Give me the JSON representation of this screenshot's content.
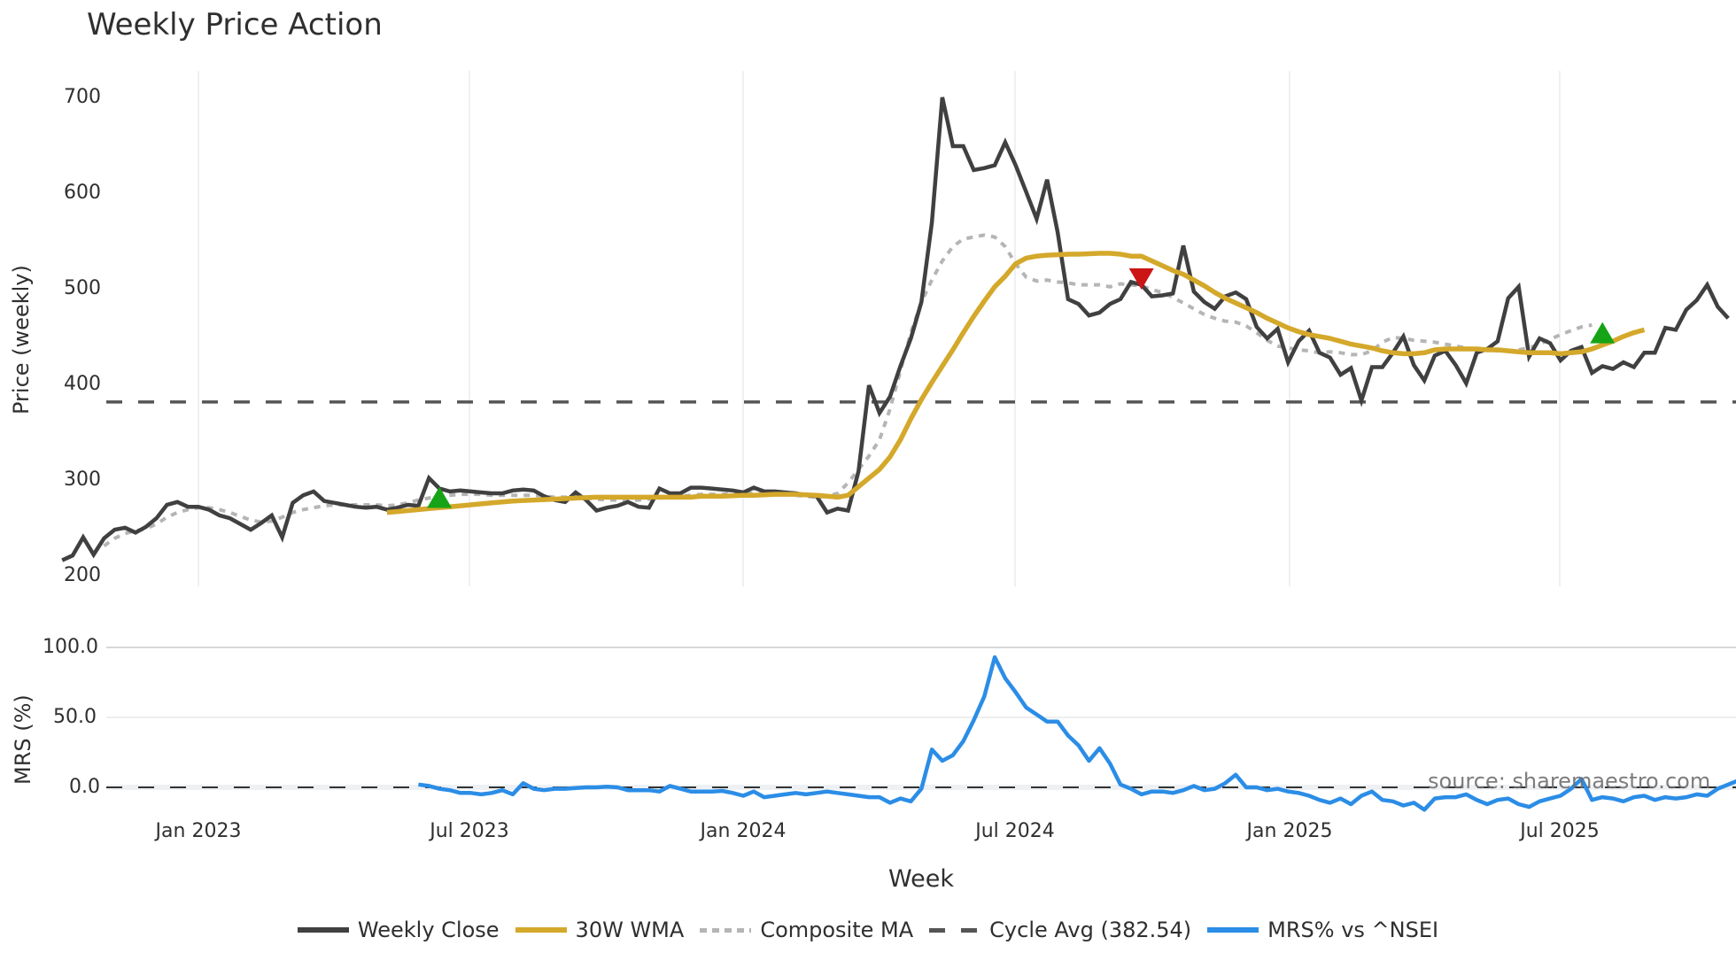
{
  "title": "Weekly Price Action",
  "source_note": "source: sharemaestro.com",
  "legend": [
    {
      "key": "close",
      "label": "Weekly Close",
      "color": "#404040",
      "style": "solid"
    },
    {
      "key": "wma",
      "label": "30W WMA",
      "color": "#d4a82a",
      "style": "solid"
    },
    {
      "key": "composite",
      "label": "Composite MA",
      "color": "#b5b5b5",
      "style": "dotted"
    },
    {
      "key": "cycle",
      "label": "Cycle Avg (382.54)",
      "color": "#555555",
      "style": "dashed"
    },
    {
      "key": "mrs",
      "label": "MRS% vs ^NSEI",
      "color": "#2b8de6",
      "style": "solid"
    }
  ],
  "chart_data": [
    {
      "type": "line",
      "title": "Weekly Price Action",
      "xlabel": "Week",
      "ylabel": "Price (weekly)",
      "ylim": [
        200,
        720
      ],
      "yticks": [
        200,
        300,
        400,
        500,
        600,
        700
      ],
      "xticks": [
        "Jan 2023",
        "Jul 2023",
        "Jan 2024",
        "Jul 2024",
        "Jan 2025",
        "Jul 2025"
      ],
      "grid": "vertical",
      "x_start": "2022-10-03",
      "x_step": "1 week",
      "cycle_avg": 382.54,
      "series": [
        {
          "name": "Weekly Close",
          "values": [
            217,
            222,
            241,
            223,
            240,
            249,
            251,
            246,
            252,
            261,
            275,
            278,
            273,
            273,
            270,
            264,
            261,
            255,
            249,
            256,
            264,
            241,
            277,
            285,
            289,
            279,
            277,
            275,
            273,
            272,
            273,
            270,
            272,
            275,
            274,
            303,
            292,
            289,
            290,
            289,
            288,
            287,
            287,
            290,
            291,
            290,
            284,
            280,
            278,
            288,
            280,
            269,
            272,
            274,
            278,
            273,
            272,
            292,
            287,
            287,
            293,
            293,
            292,
            291,
            290,
            288,
            293,
            289,
            289,
            288,
            287,
            285,
            284,
            267,
            271,
            269,
            310,
            400,
            371,
            388,
            420,
            449,
            487,
            570,
            701,
            650,
            650,
            625,
            627,
            630,
            654,
            630,
            602,
            574,
            615,
            560,
            490,
            485,
            473,
            476,
            485,
            490,
            508,
            505,
            493,
            494,
            496,
            546,
            498,
            487,
            480,
            493,
            497,
            490,
            461,
            449,
            459,
            424,
            446,
            457,
            434,
            429,
            411,
            418,
            384,
            419,
            419,
            434,
            451,
            421,
            405,
            431,
            436,
            421,
            402,
            434,
            438,
            446,
            491,
            503,
            430,
            449,
            444,
            426,
            436,
            440,
            413,
            420,
            417,
            424,
            419,
            434,
            434,
            460,
            458,
            479,
            489,
            505,
            482,
            470
          ]
        },
        {
          "name": "30W WMA",
          "start_index": 31,
          "values": [
            267,
            268,
            269,
            270,
            271,
            272,
            273,
            274,
            275,
            276,
            277,
            278,
            279,
            279.5,
            280,
            280.5,
            281,
            281.5,
            282,
            282.5,
            283,
            283,
            283,
            283,
            283,
            283,
            283,
            283,
            283,
            283,
            284,
            284,
            284,
            284.5,
            285,
            285,
            285.5,
            286,
            286,
            286,
            285.5,
            285,
            284,
            283,
            285,
            294,
            303,
            312,
            325,
            343,
            365,
            385,
            403,
            420,
            437,
            455,
            472,
            488,
            503,
            514,
            527,
            533,
            535,
            536,
            536.5,
            537,
            537,
            537.5,
            538,
            538,
            537,
            535,
            535,
            530,
            525,
            520,
            516,
            510,
            504,
            497,
            491,
            486,
            481,
            476,
            470,
            465,
            460,
            456,
            453,
            451,
            449,
            446,
            443,
            441,
            439,
            436,
            434,
            433,
            433,
            434,
            437,
            438,
            438,
            438,
            438,
            437,
            437,
            436,
            435,
            434,
            434,
            434,
            433,
            434,
            435,
            438,
            442,
            446,
            451,
            455,
            458
          ]
        },
        {
          "name": "Composite MA",
          "start_index": 4,
          "values": [
            232,
            240,
            245,
            248,
            250,
            255,
            262,
            267,
            270,
            272,
            272,
            270,
            267,
            263,
            259,
            257,
            258,
            262,
            267,
            270,
            272,
            274,
            275,
            275,
            275,
            275,
            275,
            274,
            275,
            277,
            280,
            282,
            284,
            285,
            286,
            286,
            286,
            285,
            285,
            285,
            285,
            285,
            284,
            283,
            283,
            283,
            282,
            281,
            280,
            280,
            280,
            280,
            281,
            282,
            283,
            284,
            285,
            286,
            286,
            286,
            287,
            287,
            287,
            287,
            286,
            286,
            285,
            284,
            283,
            284,
            287,
            298,
            312,
            326,
            343,
            375,
            415,
            455,
            487,
            510,
            530,
            545,
            553,
            555,
            557,
            555,
            545,
            527,
            513,
            509,
            510,
            508,
            507,
            505,
            505,
            505,
            503,
            506,
            505,
            504,
            500,
            497,
            492,
            486,
            480,
            474,
            470,
            467,
            466,
            462,
            455,
            447,
            441,
            439,
            437,
            436,
            434,
            435,
            434,
            432,
            432,
            436,
            445,
            450,
            449,
            447,
            446,
            445,
            443,
            441,
            439,
            438,
            437,
            436,
            436,
            437,
            439,
            443,
            448,
            453,
            457,
            461,
            463
          ]
        },
        {
          "name": "MRS% vs ^NSEI",
          "start_index": 34,
          "values": [
            2,
            1,
            -1,
            -2,
            -4,
            -4,
            -5,
            -4,
            -2,
            -5,
            3,
            -1,
            -2,
            -1,
            -1,
            -0.5,
            0,
            0,
            0.5,
            0,
            -2,
            -2,
            -2,
            -3,
            1,
            -1,
            -3,
            -3,
            -3,
            -2.5,
            -4,
            -6,
            -3,
            -7,
            -6,
            -5,
            -4,
            -5,
            -4,
            -3,
            -4,
            -5,
            -6,
            -7,
            -7,
            -11,
            -8,
            -10,
            -1,
            27,
            19,
            23,
            33,
            48,
            65,
            93,
            78,
            68,
            57,
            52,
            47,
            47,
            37,
            30,
            19,
            28,
            17,
            2,
            -1,
            -5,
            -3,
            -3,
            -4,
            -2,
            1,
            -2,
            -1,
            3,
            9,
            0,
            0,
            -2,
            -1,
            -3,
            -4,
            -6,
            -9,
            -11,
            -8,
            -12,
            -6,
            -3,
            -9,
            -10,
            -13,
            -11,
            -16,
            -8,
            -7,
            -7,
            -5,
            -9,
            -12,
            -9,
            -8,
            -12,
            -14,
            -10,
            -8,
            -6,
            -1,
            6,
            -9,
            -7,
            -8,
            -10,
            -7,
            -6,
            -9,
            -7,
            -8,
            -7,
            -5,
            -6,
            -1,
            2,
            5,
            6,
            7,
            -1,
            -3
          ]
        }
      ],
      "markers": [
        {
          "type": "buy",
          "shape": "triangle-up",
          "color": "#17a317",
          "index": 36,
          "value": 282
        },
        {
          "type": "sell",
          "shape": "triangle-down",
          "color": "#cc1515",
          "index": 103,
          "value": 512
        },
        {
          "type": "buy",
          "shape": "triangle-up",
          "color": "#17a317",
          "index": 147,
          "value": 454
        }
      ]
    },
    {
      "type": "line",
      "title": "",
      "ylabel": "MRS (%)",
      "ylim": [
        -20,
        100
      ],
      "yticks": [
        "0.0",
        "50.0",
        "100.0"
      ],
      "reference_line": 0,
      "series_ref": "MRS% vs ^NSEI"
    }
  ],
  "axes": {
    "price_ylabel": "Price (weekly)",
    "mrs_ylabel": "MRS (%)",
    "xlabel": "Week",
    "price_ticks": [
      "700",
      "600",
      "500",
      "400",
      "300",
      "200"
    ],
    "mrs_ticks": [
      "100.0",
      "50.0",
      "0.0"
    ],
    "x_ticks": [
      "Jan 2023",
      "Jul 2023",
      "Jan 2024",
      "Jul 2024",
      "Jan 2025",
      "Jul 2025"
    ]
  }
}
